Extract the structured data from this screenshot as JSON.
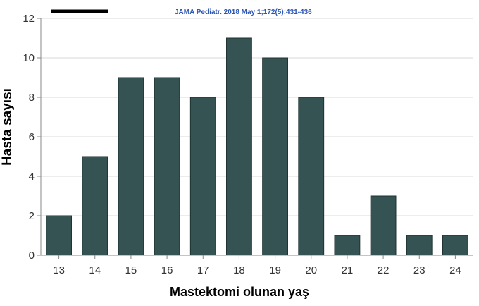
{
  "chart_data": {
    "type": "bar",
    "title": "",
    "source_note": "JAMA Pediatr. 2018 May 1;172(5):431-436",
    "xlabel": "Mastektomi olunan yaş",
    "ylabel": "Hasta sayısı",
    "categories": [
      "13",
      "14",
      "15",
      "16",
      "17",
      "18",
      "19",
      "20",
      "21",
      "22",
      "23",
      "24"
    ],
    "values": [
      2,
      5,
      9,
      9,
      8,
      11,
      10,
      8,
      1,
      3,
      1,
      1
    ],
    "ylim": [
      0,
      12
    ],
    "yticks": [
      "0",
      "2",
      "4",
      "6",
      "8",
      "10",
      "12"
    ],
    "grid": true,
    "colors": {
      "bar": "#345352",
      "bar_stroke": "#1f3332",
      "grid": "#d9d9d9",
      "source": "#2b56b5",
      "scale_bar": "#000000"
    }
  }
}
